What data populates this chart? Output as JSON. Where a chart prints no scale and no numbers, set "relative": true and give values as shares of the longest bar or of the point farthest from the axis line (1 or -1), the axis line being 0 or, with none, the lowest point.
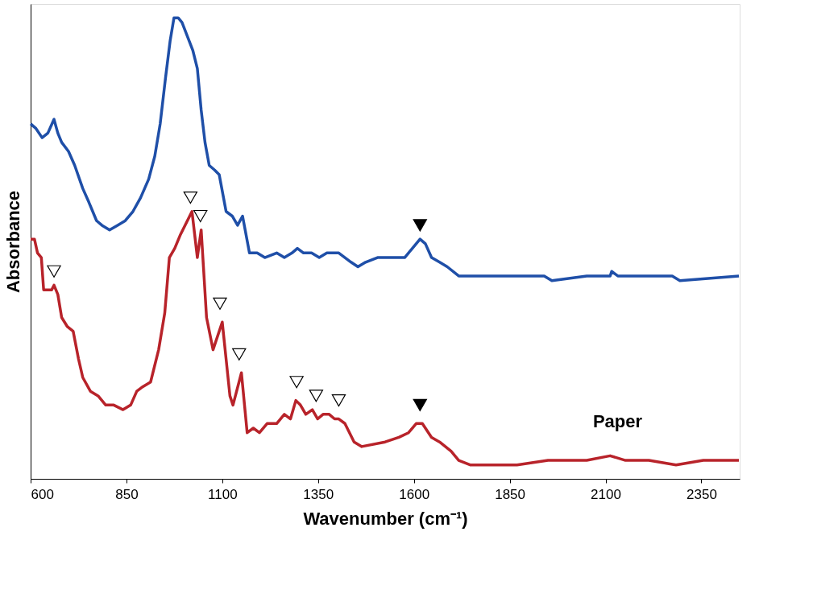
{
  "chart_data": {
    "type": "line",
    "xlabel": "Wavenumber (cm⁻¹)",
    "ylabel": "Absorbance",
    "relative": true,
    "xlim": [
      600,
      2450
    ],
    "xticks": [
      600,
      850,
      1100,
      1350,
      1600,
      1850,
      2100,
      2350
    ],
    "line_style": "solid",
    "series": [
      {
        "color": "#1f4fa8",
        "x": [
          600,
          614,
          630,
          645,
          661,
          671,
          681,
          699,
          715,
          736,
          752,
          772,
          786,
          806,
          827,
          847,
          867,
          887,
          908,
          924,
          938,
          952,
          964,
          974,
          985,
          995,
          1009,
          1023,
          1035,
          1045,
          1055,
          1066,
          1080,
          1092,
          1110,
          1126,
          1140,
          1153,
          1171,
          1191,
          1211,
          1242,
          1262,
          1282,
          1296,
          1312,
          1333,
          1353,
          1373,
          1404,
          1420,
          1436,
          1454,
          1474,
          1505,
          1525,
          1555,
          1576,
          1596,
          1616,
          1630,
          1646,
          1667,
          1687,
          1717,
          1748,
          1869,
          1940,
          1960,
          2051,
          2112,
          2116,
          2132,
          2274,
          2294,
          2448
        ],
        "values": [
          0.77,
          0.76,
          0.74,
          0.75,
          0.78,
          0.75,
          0.73,
          0.71,
          0.68,
          0.63,
          0.6,
          0.56,
          0.55,
          0.54,
          0.55,
          0.56,
          0.58,
          0.61,
          0.65,
          0.7,
          0.77,
          0.87,
          0.95,
          1.0,
          1.0,
          0.99,
          0.96,
          0.93,
          0.89,
          0.8,
          0.73,
          0.68,
          0.67,
          0.66,
          0.58,
          0.57,
          0.55,
          0.57,
          0.49,
          0.49,
          0.48,
          0.49,
          0.48,
          0.49,
          0.5,
          0.49,
          0.49,
          0.48,
          0.49,
          0.49,
          0.48,
          0.47,
          0.46,
          0.47,
          0.48,
          0.48,
          0.48,
          0.48,
          0.5,
          0.52,
          0.51,
          0.48,
          0.47,
          0.46,
          0.44,
          0.44,
          0.44,
          0.44,
          0.43,
          0.44,
          0.44,
          0.45,
          0.44,
          0.44,
          0.43,
          0.44
        ]
      },
      {
        "name": "Paper",
        "color": "#b8232a",
        "x": [
          600,
          610,
          618,
          628,
          634,
          645,
          655,
          661,
          671,
          681,
          696,
          711,
          725,
          736,
          756,
          776,
          796,
          817,
          841,
          861,
          877,
          893,
          913,
          934,
          950,
          962,
          976,
          991,
          1003,
          1021,
          1035,
          1045,
          1059,
          1076,
          1100,
          1120,
          1128,
          1150,
          1165,
          1181,
          1197,
          1217,
          1242,
          1262,
          1278,
          1292,
          1304,
          1318,
          1335,
          1349,
          1363,
          1379,
          1393,
          1404,
          1420,
          1444,
          1464,
          1525,
          1561,
          1586,
          1606,
          1622,
          1646,
          1667,
          1697,
          1717,
          1748,
          1869,
          1950,
          2051,
          2112,
          2152,
          2213,
          2284,
          2355,
          2448
        ],
        "values": [
          0.52,
          0.52,
          0.49,
          0.48,
          0.41,
          0.41,
          0.41,
          0.42,
          0.4,
          0.35,
          0.33,
          0.32,
          0.26,
          0.22,
          0.19,
          0.18,
          0.16,
          0.16,
          0.15,
          0.16,
          0.19,
          0.2,
          0.21,
          0.28,
          0.36,
          0.48,
          0.5,
          0.53,
          0.55,
          0.58,
          0.48,
          0.54,
          0.35,
          0.28,
          0.34,
          0.18,
          0.16,
          0.23,
          0.1,
          0.11,
          0.1,
          0.12,
          0.12,
          0.14,
          0.13,
          0.17,
          0.16,
          0.14,
          0.15,
          0.13,
          0.14,
          0.14,
          0.13,
          0.13,
          0.12,
          0.08,
          0.07,
          0.08,
          0.09,
          0.1,
          0.12,
          0.12,
          0.09,
          0.08,
          0.06,
          0.04,
          0.03,
          0.03,
          0.04,
          0.04,
          0.05,
          0.04,
          0.04,
          0.03,
          0.04,
          0.04
        ]
      },
      {
        "type": "scatter",
        "marker": "triangle",
        "color": "#ffffff",
        "x": [
          661,
          1017,
          1043,
          1094,
          1144,
          1294,
          1345,
          1404
        ],
        "values": [
          0.45,
          0.61,
          0.57,
          0.38,
          0.27,
          0.21,
          0.18,
          0.17
        ]
      },
      {
        "type": "scatter",
        "marker": "triangle",
        "color": "#000000",
        "x": [
          1616,
          1616
        ],
        "values": [
          0.55,
          0.16
        ]
      }
    ]
  }
}
